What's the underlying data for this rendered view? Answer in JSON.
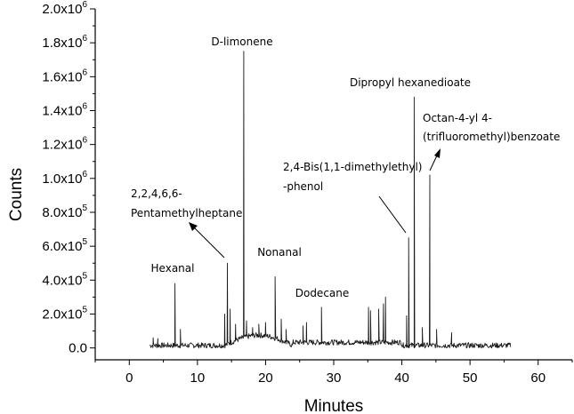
{
  "chart_data": {
    "type": "line",
    "xlabel": "Minutes",
    "ylabel": "Counts",
    "xlim": [
      -5,
      65
    ],
    "ylim": [
      -70000,
      2000000
    ],
    "xticks": [
      0,
      10,
      20,
      30,
      40,
      50,
      60
    ],
    "yticks": [
      {
        "value": 0,
        "mantissa": "0.0",
        "exp": ""
      },
      {
        "value": 200000,
        "mantissa": "2.0x10",
        "exp": "5"
      },
      {
        "value": 400000,
        "mantissa": "4.0x10",
        "exp": "5"
      },
      {
        "value": 600000,
        "mantissa": "6.0x10",
        "exp": "5"
      },
      {
        "value": 800000,
        "mantissa": "8.0x10",
        "exp": "5"
      },
      {
        "value": 1000000,
        "mantissa": "1.0x10",
        "exp": "6"
      },
      {
        "value": 1200000,
        "mantissa": "1.2x10",
        "exp": "6"
      },
      {
        "value": 1400000,
        "mantissa": "1.4x10",
        "exp": "6"
      },
      {
        "value": 1600000,
        "mantissa": "1.6x10",
        "exp": "6"
      },
      {
        "value": 1800000,
        "mantissa": "1.8x10",
        "exp": "6"
      },
      {
        "value": 2000000,
        "mantissa": "2.0x10",
        "exp": "6"
      }
    ],
    "grid": false,
    "peaks": [
      {
        "rt": 6.7,
        "counts": 380000
      },
      {
        "rt": 14.4,
        "counts": 500000
      },
      {
        "rt": 16.8,
        "counts": 1750000
      },
      {
        "rt": 21.4,
        "counts": 420000
      },
      {
        "rt": 28.2,
        "counts": 240000
      },
      {
        "rt": 41.0,
        "counts": 650000
      },
      {
        "rt": 41.8,
        "counts": 1480000
      },
      {
        "rt": 44.1,
        "counts": 1020000
      }
    ],
    "annotations": [
      {
        "id": "hexanal",
        "lines": [
          "Hexanal"
        ]
      },
      {
        "id": "pentamethylheptane",
        "lines": [
          "2,2,4,6,6-",
          "Pentamethylheptane"
        ]
      },
      {
        "id": "limonene",
        "lines": [
          "D-limonene"
        ]
      },
      {
        "id": "nonanal",
        "lines": [
          "Nonanal"
        ]
      },
      {
        "id": "dodecane",
        "lines": [
          "Dodecane"
        ]
      },
      {
        "id": "bisphenol",
        "lines": [
          "2,4-Bis(1,1-dimethylethyl)",
          "-phenol"
        ]
      },
      {
        "id": "dipropyl",
        "lines": [
          "Dipropyl hexanedioate"
        ]
      },
      {
        "id": "octanyl",
        "lines": [
          "Octan-4-yl 4-",
          "(trifluoromethyl)benzoate"
        ]
      }
    ]
  }
}
